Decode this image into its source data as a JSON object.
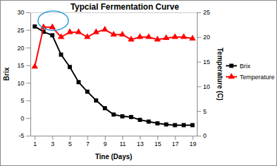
{
  "chart_data": {
    "type": "line",
    "title": "Typcial Fermentation Curve",
    "x_label": "Tine (Days)",
    "y_label": "Brix",
    "y2_label": "Temperature (C)",
    "x": [
      1,
      2,
      3,
      4,
      5,
      6,
      7,
      8,
      9,
      10,
      11,
      12,
      13,
      14,
      15,
      16,
      17,
      18,
      19
    ],
    "xlim": [
      0.5,
      19.5
    ],
    "xticks": [
      1,
      3,
      5,
      7,
      9,
      11,
      13,
      15,
      17,
      19
    ],
    "ylim": [
      -5,
      30
    ],
    "yticks": [
      -5,
      0,
      5,
      10,
      15,
      20,
      25,
      30
    ],
    "y2lim": [
      0,
      25
    ],
    "y2ticks": [
      0,
      5,
      10,
      15,
      20,
      25
    ],
    "grid": false,
    "legend": "right",
    "series": [
      {
        "name": "Brix",
        "color": "#000000",
        "marker": "square",
        "values": [
          26,
          24.5,
          23.5,
          18,
          14.5,
          10.2,
          7.5,
          5,
          2.8,
          1,
          0.5,
          0.3,
          -0.5,
          -1,
          -1.5,
          -1.8,
          -2,
          -2,
          -2
        ]
      },
      {
        "name": "Temperature",
        "color": "#ff0000",
        "marker": "triangle",
        "axis": "y2",
        "values": [
          14,
          22,
          22,
          20,
          21,
          21,
          20,
          21,
          21.5,
          20.5,
          20.5,
          19.5,
          20,
          20,
          19.5,
          19.8,
          20,
          20,
          19.7
        ]
      }
    ]
  }
}
